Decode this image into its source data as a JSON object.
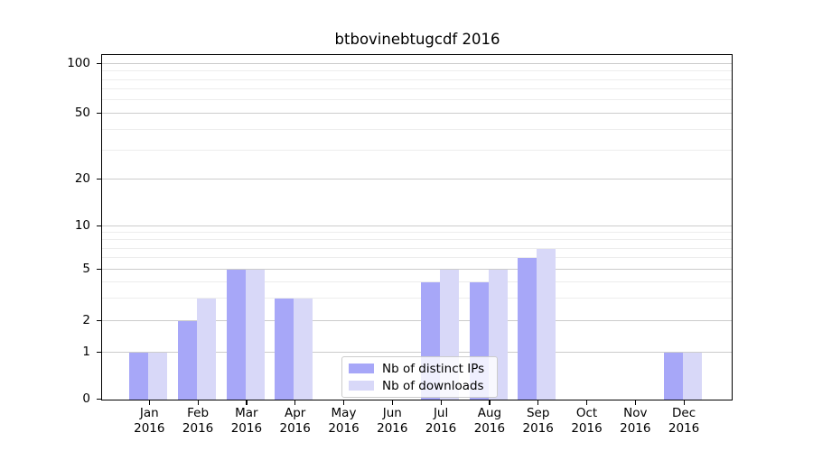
{
  "chart_data": {
    "type": "bar",
    "title": "btbovinebtugcdf 2016",
    "categories": [
      "Jan 2016",
      "Feb 2016",
      "Mar 2016",
      "Apr 2016",
      "May 2016",
      "Jun 2016",
      "Jul 2016",
      "Aug 2016",
      "Sep 2016",
      "Oct 2016",
      "Nov 2016",
      "Dec 2016"
    ],
    "months": [
      "Jan",
      "Feb",
      "Mar",
      "Apr",
      "May",
      "Jun",
      "Jul",
      "Aug",
      "Sep",
      "Oct",
      "Nov",
      "Dec"
    ],
    "year_label": "2016",
    "series": [
      {
        "name": "Nb of distinct IPs",
        "color": "#a7a7f8",
        "values": [
          1,
          2,
          5,
          3,
          0,
          0,
          4,
          4,
          6,
          0,
          0,
          1
        ]
      },
      {
        "name": "Nb of downloads",
        "color": "#d8d8f8",
        "values": [
          1,
          3,
          5,
          3,
          0,
          0,
          5,
          5,
          7,
          0,
          0,
          1
        ]
      }
    ],
    "y_axis": {
      "scale": "symlog",
      "ylim": [
        0,
        100
      ],
      "ticks": [
        100,
        50,
        20,
        10,
        5,
        2,
        1,
        0
      ],
      "tick_labels": [
        "100",
        "50",
        "20",
        "10",
        "5",
        "2",
        "1",
        "0"
      ],
      "minor_gridlines": [
        3,
        4,
        6,
        7,
        8,
        9,
        30,
        40,
        60,
        70,
        80,
        90
      ]
    },
    "xlabel": "",
    "ylabel": "",
    "grid": true,
    "legend": {
      "position": "lower center",
      "entries": [
        "Nb of distinct IPs",
        "Nb of downloads"
      ]
    }
  },
  "colors": {
    "major_grid": "#cccccc",
    "minor_grid": "#ededed",
    "axis": "#000000",
    "background": "#ffffff"
  }
}
